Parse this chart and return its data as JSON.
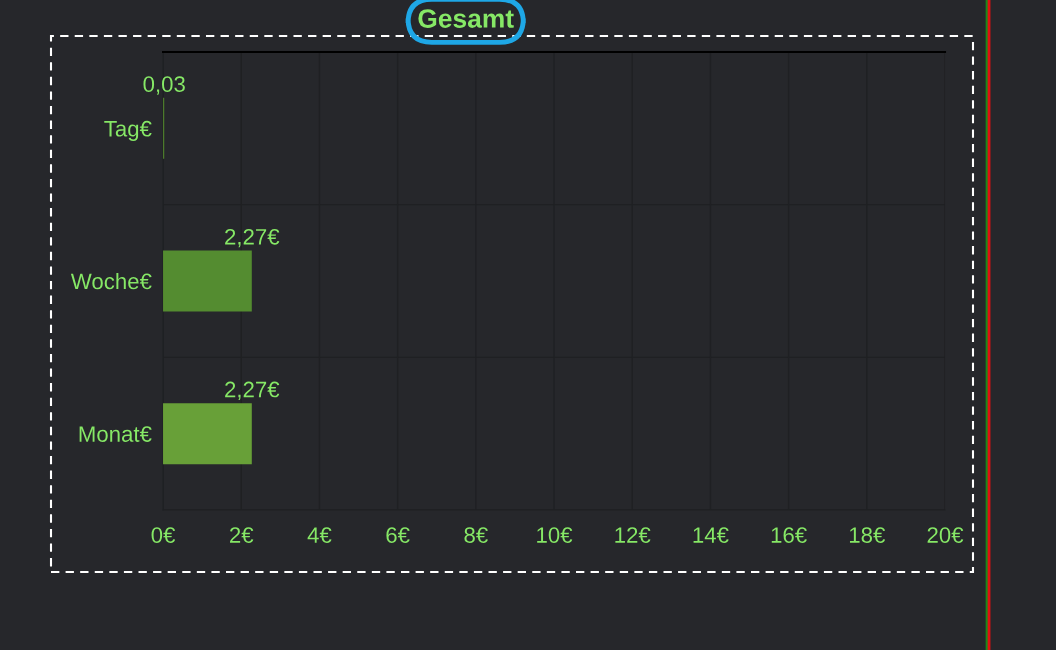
{
  "chart_data": {
    "type": "bar",
    "orientation": "horizontal",
    "title": "Gesamt",
    "categories": [
      "Tag€",
      "Woche€",
      "Monat€"
    ],
    "values": [
      0.03,
      2.27,
      2.27
    ],
    "colors": [
      "#4f7f2c",
      "#548c30",
      "#68a038"
    ],
    "value_labels": [
      "0,03",
      "2,27€",
      "2,27€"
    ],
    "xlim": [
      0,
      20
    ],
    "xticks": [
      {
        "value": 0,
        "label": "0€"
      },
      {
        "value": 2,
        "label": "2€"
      },
      {
        "value": 4,
        "label": "4€"
      },
      {
        "value": 6,
        "label": "6€"
      },
      {
        "value": 8,
        "label": "8€"
      },
      {
        "value": 10,
        "label": "10€"
      },
      {
        "value": 12,
        "label": "12€"
      },
      {
        "value": 14,
        "label": "14€"
      },
      {
        "value": 16,
        "label": "16€"
      },
      {
        "value": 18,
        "label": "18€"
      },
      {
        "value": 20,
        "label": "20€"
      }
    ],
    "grid": true
  }
}
